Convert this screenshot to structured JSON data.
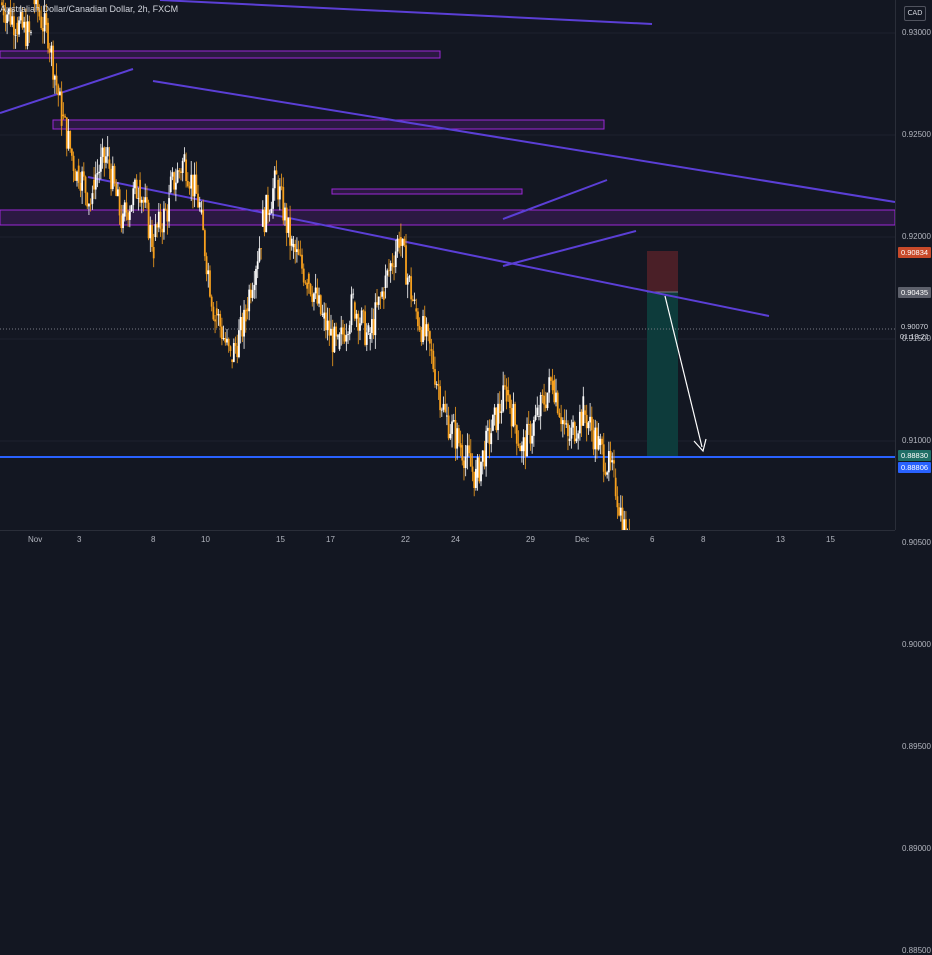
{
  "title": "Australian Dollar/Canadian Dollar, 2h, FXCM",
  "currency": "CAD",
  "colors": {
    "background": "#131722",
    "candle_up": "#ffffff",
    "candle_down": "#f7a01d",
    "trendline": "#5b3fd6",
    "zone_border": "#9b27d6",
    "support_line": "#2962ff",
    "stop_zone": "#4a1f27",
    "target_zone": "#0d3b3b"
  },
  "chart_data": {
    "type": "candlestick",
    "symbol": "AUDCAD",
    "timeframe": "2h",
    "y_ticks": [
      "0.93000",
      "0.92500",
      "0.92000",
      "0.91500",
      "0.91000",
      "0.90500",
      "0.90000",
      "0.89500",
      "0.89000",
      "0.88500"
    ],
    "x_ticks": [
      "Nov",
      "3",
      "8",
      "10",
      "15",
      "17",
      "22",
      "24",
      "29",
      "Dec",
      "6",
      "8",
      "13",
      "15"
    ],
    "ylim": [
      0.8843,
      0.9342
    ],
    "price_path": [
      [
        0.9315,
        0.9305
      ],
      [
        0.9305,
        0.9298
      ],
      [
        0.932,
        0.93
      ],
      [
        0.9305,
        0.926
      ],
      [
        0.926,
        0.923
      ],
      [
        0.9235,
        0.9215
      ],
      [
        0.9228,
        0.924
      ],
      [
        0.9238,
        0.9205
      ],
      [
        0.921,
        0.9225
      ],
      [
        0.9228,
        0.9195
      ],
      [
        0.92,
        0.9215
      ],
      [
        0.9222,
        0.9238
      ],
      [
        0.9238,
        0.9215
      ],
      [
        0.9212,
        0.916
      ],
      [
        0.9165,
        0.914
      ],
      [
        0.914,
        0.916
      ],
      [
        0.9165,
        0.92
      ],
      [
        0.9205,
        0.9228
      ],
      [
        0.9228,
        0.9195
      ],
      [
        0.9195,
        0.918
      ],
      [
        0.9182,
        0.916
      ],
      [
        0.916,
        0.9145
      ],
      [
        0.9145,
        0.9168
      ],
      [
        0.9168,
        0.915
      ],
      [
        0.915,
        0.9175
      ],
      [
        0.9175,
        0.92
      ],
      [
        0.92,
        0.9165
      ],
      [
        0.9165,
        0.9145
      ],
      [
        0.9145,
        0.9112
      ],
      [
        0.9112,
        0.9098
      ],
      [
        0.9098,
        0.9082
      ],
      [
        0.9082,
        0.9105
      ],
      [
        0.9105,
        0.9125
      ],
      [
        0.9125,
        0.9095
      ],
      [
        0.9095,
        0.9112
      ],
      [
        0.9112,
        0.913
      ],
      [
        0.913,
        0.91
      ],
      [
        0.91,
        0.9115
      ],
      [
        0.9115,
        0.9098
      ],
      [
        0.9098,
        0.9082
      ],
      [
        0.9082,
        0.9045
      ],
      [
        0.9045,
        0.8985
      ],
      [
        0.8985,
        0.9005
      ]
    ],
    "annotations": {
      "current_price": "0.90070",
      "countdown": "01:13:21",
      "stop_level": "0.90834",
      "entry_level": "0.90435",
      "target_level": "0.88830",
      "support_level": "0.88806"
    }
  }
}
